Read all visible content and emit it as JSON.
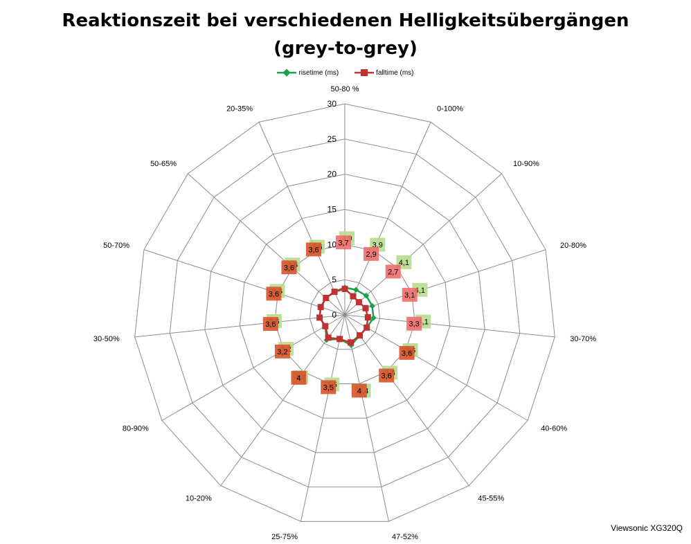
{
  "title_line1": "Reaktionszeit bei verschiedenen Helligkeitsübergängen",
  "title_line2": "(grey-to-grey)",
  "watermark": "Viewsonic XG320Q",
  "colors": {
    "rise": "#1aa14a",
    "fall": "#c0312f",
    "rise_label_bg": "#b7dc8f",
    "fall_label_bg": "#ef6b6b",
    "fall_label_bg_dark": "#d9532c",
    "grid": "#8c8c8c"
  },
  "chart_data": {
    "type": "radar",
    "categories": [
      "50-80 %",
      "0-100%",
      "10-90%",
      "20-80%",
      "30-70%",
      "40-60%",
      "45-55%",
      "47-52%",
      "25-75%",
      "10-20%",
      "80-90%",
      "30-50%",
      "50-70%",
      "50-65%",
      "20-35%"
    ],
    "rlim": [
      0,
      30
    ],
    "ticks": [
      0,
      5,
      10,
      15,
      20,
      25,
      30
    ],
    "grid": true,
    "legend_position": "top",
    "series": [
      {
        "name": "risetime (ms)",
        "values": [
          3.9,
          3.9,
          4.1,
          4.1,
          4.1,
          3.6,
          3.6,
          4.4,
          3.5,
          4.4,
          3.2,
          3.6,
          3.6,
          3.6,
          3.6
        ],
        "labels": [
          "3,9",
          "3,9",
          "4,1",
          "4,1",
          "4,1",
          "3,6",
          "3,6",
          "4,4",
          "3,5",
          "4,4",
          "3,2",
          "3,6",
          "3,6",
          "3,6",
          "3,6"
        ]
      },
      {
        "name": "falltime (ms)",
        "values": [
          3.7,
          2.9,
          2.7,
          3.1,
          3.3,
          3.6,
          3.6,
          4.0,
          3.5,
          4.0,
          3.2,
          3.6,
          3.6,
          3.6,
          3.6
        ],
        "labels": [
          "3,7",
          "2,9",
          "2,7",
          "3,1",
          "3,3",
          "3,6",
          "3,6",
          "4",
          "3,5",
          "4",
          "3,2",
          "3,6",
          "3,6",
          "3,6",
          "3,6"
        ]
      }
    ]
  }
}
